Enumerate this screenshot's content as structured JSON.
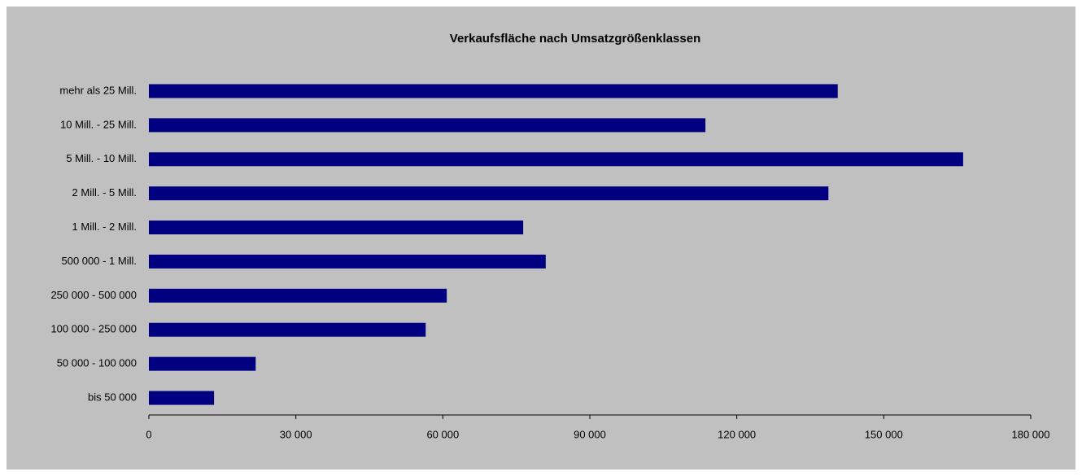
{
  "chart_data": {
    "type": "bar",
    "orientation": "horizontal",
    "title": "Verkaufsfläche nach Umsatzgrößenklassen",
    "categories": [
      "mehr als 25 Mill.",
      "10 Mill. - 25 Mill.",
      "5 Mill. - 10 Mill.",
      "2 Mill. - 5 Mill.",
      "1 Mill. - 2 Mill.",
      "500 000 - 1 Mill.",
      "250 000 - 500 000",
      "100 000 - 250 000",
      "50 000 - 100 000",
      "bis 50 000"
    ],
    "values": [
      140600,
      113600,
      166200,
      138700,
      76400,
      81000,
      60800,
      56500,
      21800,
      13300
    ],
    "color": "#000080",
    "xlim": [
      0,
      180000
    ],
    "xticks": [
      0,
      {
        "value": 30000,
        "label": "30 000"
      },
      {
        "value": 60000,
        "label": "60 000"
      },
      {
        "value": 90000,
        "label": "90 000"
      },
      {
        "value": 120000,
        "label": "120 000"
      },
      {
        "value": 150000,
        "label": "150 000"
      },
      {
        "value": 180000,
        "label": "180 000"
      }
    ],
    "grid": false
  }
}
